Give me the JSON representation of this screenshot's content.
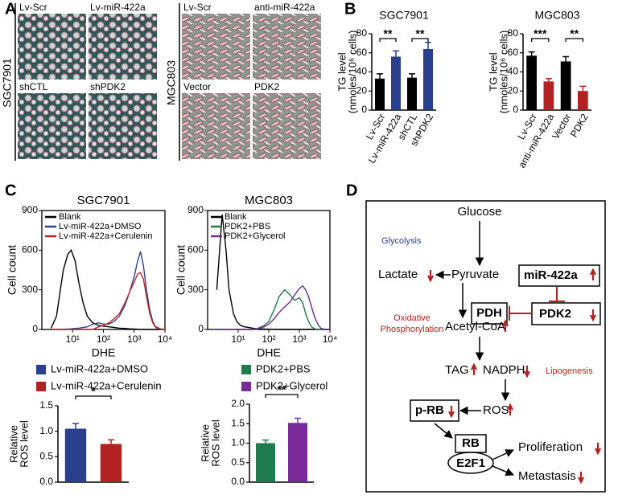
{
  "panel_labels": [
    "A",
    "B",
    "C",
    "D"
  ],
  "panel_a": {
    "groups": [
      {
        "cell_line": "SGC7901",
        "images": [
          "Lv-Scr",
          "Lv-miR-422a",
          "shCTL",
          "shPDK2"
        ]
      },
      {
        "cell_line": "MGC803",
        "images": [
          "Lv-Scr",
          "anti-miR-422a",
          "Vector",
          "PDK2"
        ]
      }
    ]
  },
  "chart_data": [
    {
      "type": "bar",
      "title": "SGC7901",
      "ylabel": [
        "TG level",
        "(nmoles/10⁶ cells)"
      ],
      "categories": [
        "Lv-Scr",
        "Lv-miR-422a",
        "shCTL",
        "shPDK2"
      ],
      "values": [
        33,
        56,
        34,
        64
      ],
      "errors": [
        5,
        6,
        4,
        7
      ],
      "colors": [
        "#000000",
        "#2b3f8f",
        "#000000",
        "#2b3f8f"
      ],
      "ylim": [
        0,
        80
      ],
      "yticks": [
        0,
        20,
        40,
        60,
        80
      ],
      "significance": [
        {
          "label": "**",
          "pair": [
            0,
            1
          ]
        },
        {
          "label": "**",
          "pair": [
            2,
            3
          ]
        }
      ]
    },
    {
      "type": "bar",
      "title": "MGC803",
      "ylabel": [
        "TG level",
        "(nmoles/10⁶ cells)"
      ],
      "categories": [
        "Lv-Scr",
        "anti-miR-422a",
        "Vector",
        "PDK2"
      ],
      "values": [
        57,
        30,
        51,
        20
      ],
      "errors": [
        4,
        3,
        5,
        5
      ],
      "colors": [
        "#000000",
        "#b22222",
        "#000000",
        "#b22222"
      ],
      "ylim": [
        0,
        80
      ],
      "yticks": [
        0,
        20,
        40,
        60,
        80
      ],
      "significance": [
        {
          "label": "***",
          "pair": [
            0,
            1
          ]
        },
        {
          "label": "**",
          "pair": [
            2,
            3
          ]
        }
      ]
    },
    {
      "type": "line",
      "title": "SGC7901",
      "ylabel": "Cell count",
      "xlabel": "DHE",
      "xscale": "log",
      "xlim": [
        1,
        10000
      ],
      "xticks": [
        {
          "value": 10,
          "label": "10¹"
        },
        {
          "value": 100,
          "label": "10²"
        },
        {
          "value": 1000,
          "label": "10³"
        },
        {
          "value": 10000,
          "label": "10⁴"
        }
      ],
      "ylim": [
        0,
        900
      ],
      "yticks": [
        0,
        300,
        600,
        900
      ],
      "x": [
        2,
        3,
        4,
        5,
        7,
        9,
        12,
        16,
        22,
        30,
        45,
        70,
        100,
        150,
        220,
        330,
        500,
        700,
        1000,
        1300,
        1600,
        2000,
        2500,
        3200,
        4000,
        5000,
        7000,
        10000
      ],
      "series": [
        {
          "name": "Blank",
          "color": "#000000",
          "values": [
            10,
            100,
            300,
            450,
            570,
            600,
            520,
            350,
            200,
            100,
            50,
            30,
            25,
            20,
            15,
            10,
            8,
            5,
            3,
            2,
            1,
            0,
            0,
            0,
            0,
            0,
            0,
            0
          ]
        },
        {
          "name": "Lv-miR-422a+DMSO",
          "color": "#2b3f8f",
          "values": [
            0,
            0,
            0,
            2,
            3,
            5,
            8,
            10,
            15,
            20,
            40,
            50,
            40,
            40,
            60,
            100,
            180,
            280,
            400,
            520,
            590,
            480,
            300,
            150,
            60,
            20,
            5,
            0
          ]
        },
        {
          "name": "Lv-miR-422a+Cerulenin",
          "color": "#c0261e",
          "values": [
            0,
            0,
            0,
            0,
            0,
            0,
            0,
            0,
            0,
            0,
            0,
            20,
            30,
            50,
            80,
            120,
            200,
            280,
            360,
            420,
            430,
            380,
            250,
            120,
            50,
            15,
            3,
            0
          ]
        }
      ]
    },
    {
      "type": "line",
      "title": "MGC803",
      "ylabel": "Cell count",
      "xlabel": "DHE",
      "xscale": "log",
      "xlim": [
        1,
        10000
      ],
      "xticks": [
        {
          "value": 10,
          "label": "10¹"
        },
        {
          "value": 100,
          "label": "10²"
        },
        {
          "value": 1000,
          "label": "10³"
        },
        {
          "value": 10000,
          "label": "10⁴"
        }
      ],
      "ylim": [
        0,
        900
      ],
      "yticks": [
        0,
        300,
        600,
        900
      ],
      "x": [
        2,
        3,
        4,
        5,
        7,
        9,
        12,
        16,
        22,
        30,
        45,
        70,
        100,
        150,
        220,
        330,
        500,
        700,
        1000,
        1300,
        1600,
        2000,
        2500,
        3200,
        4000,
        5000,
        7000,
        10000
      ],
      "series": [
        {
          "name": "Blank",
          "color": "#000000",
          "values": [
            300,
            870,
            600,
            300,
            120,
            60,
            30,
            20,
            15,
            10,
            5,
            3,
            2,
            1,
            0,
            0,
            0,
            0,
            0,
            0,
            0,
            0,
            0,
            0,
            0,
            0,
            0,
            0
          ]
        },
        {
          "name": "PDK2+PBS",
          "color": "#1f7a4d",
          "values": [
            0,
            0,
            0,
            0,
            0,
            0,
            0,
            0,
            0,
            0,
            10,
            30,
            60,
            150,
            250,
            300,
            260,
            220,
            240,
            200,
            120,
            60,
            20,
            5,
            0,
            0,
            0,
            0
          ]
        },
        {
          "name": "PDK2+Glycerol",
          "color": "#6a2c8f",
          "values": [
            0,
            0,
            0,
            0,
            0,
            0,
            0,
            0,
            0,
            0,
            5,
            20,
            40,
            80,
            130,
            170,
            210,
            260,
            310,
            330,
            300,
            250,
            170,
            90,
            40,
            10,
            0,
            0
          ]
        }
      ]
    },
    {
      "type": "bar",
      "ylabel": [
        "Relative",
        "ROS level"
      ],
      "categories": [
        "Lv-miR-422a+DMSO",
        "Lv-miR-422a+Cerulenin"
      ],
      "values": [
        1.05,
        0.75
      ],
      "errors": [
        0.1,
        0.08
      ],
      "colors": [
        "#2b3f8f",
        "#b22222"
      ],
      "ylim": [
        0,
        1.5
      ],
      "yticks": [
        {
          "value": 0,
          "label": "0.0"
        },
        0.5,
        {
          "value": 1,
          "label": "1.0"
        },
        1.5
      ],
      "significance": [
        {
          "label": "*",
          "pair": [
            0,
            1
          ]
        }
      ]
    },
    {
      "type": "bar",
      "ylabel": [
        "Relative",
        "ROS level"
      ],
      "categories": [
        "PDK2+PBS",
        "PDK2+Glycerol"
      ],
      "values": [
        1.0,
        1.52
      ],
      "errors": [
        0.08,
        0.12
      ],
      "colors": [
        "#1f7a4d",
        "#7b2a9a"
      ],
      "ylim": [
        0,
        2
      ],
      "yticks": [
        {
          "value": 0,
          "label": "0.0"
        },
        0.5,
        {
          "value": 1,
          "label": "1.0"
        },
        1.5,
        {
          "value": 2,
          "label": "2.0"
        }
      ],
      "significance": [
        {
          "label": "**",
          "pair": [
            0,
            1
          ]
        }
      ]
    }
  ],
  "diagram": {
    "glucose": "Glucose",
    "glycolysis": "Glycolysis",
    "lactate": "Lactate",
    "pyruvate": "Pyruvate",
    "mir": "miR-422a",
    "pdh": "PDH",
    "pdk2": "PDK2",
    "oxidative": [
      "Oxidative",
      "Phosphorylation"
    ],
    "acetyl": "Acetyl-CoA",
    "tag": "TAG",
    "nadph": "NADPH",
    "lipogenesis": "Lipogenesis",
    "ros": "ROS",
    "prb": "p-RB",
    "rb": "RB",
    "e2f1": "E2F1",
    "proliferation": "Proliferation",
    "metastasis": "Metastasis"
  }
}
